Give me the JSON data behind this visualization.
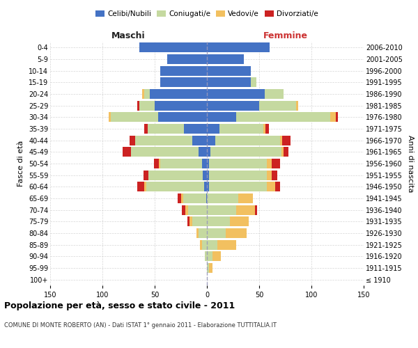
{
  "age_groups": [
    "100+",
    "95-99",
    "90-94",
    "85-89",
    "80-84",
    "75-79",
    "70-74",
    "65-69",
    "60-64",
    "55-59",
    "50-54",
    "45-49",
    "40-44",
    "35-39",
    "30-34",
    "25-29",
    "20-24",
    "15-19",
    "10-14",
    "5-9",
    "0-4"
  ],
  "birth_years": [
    "≤ 1910",
    "1911-1915",
    "1916-1920",
    "1921-1925",
    "1926-1930",
    "1931-1935",
    "1936-1940",
    "1941-1945",
    "1946-1950",
    "1951-1955",
    "1956-1960",
    "1961-1965",
    "1966-1970",
    "1971-1975",
    "1976-1980",
    "1981-1985",
    "1986-1990",
    "1991-1995",
    "1996-2000",
    "2001-2005",
    "2006-2010"
  ],
  "male_celibi": [
    0,
    0,
    0,
    0,
    0,
    0,
    0,
    1,
    3,
    4,
    5,
    8,
    14,
    22,
    47,
    50,
    55,
    45,
    45,
    38,
    65
  ],
  "male_coniugati": [
    0,
    0,
    2,
    5,
    8,
    14,
    18,
    22,
    55,
    52,
    40,
    65,
    55,
    35,
    45,
    15,
    5,
    0,
    0,
    0,
    0
  ],
  "male_vedovi": [
    0,
    0,
    0,
    2,
    2,
    3,
    3,
    2,
    2,
    0,
    1,
    0,
    0,
    0,
    2,
    0,
    2,
    0,
    0,
    0,
    0
  ],
  "male_divorziati": [
    0,
    0,
    0,
    0,
    0,
    2,
    3,
    3,
    7,
    5,
    5,
    8,
    5,
    3,
    0,
    2,
    0,
    0,
    0,
    0,
    0
  ],
  "female_nubili": [
    0,
    0,
    0,
    0,
    0,
    0,
    0,
    0,
    2,
    2,
    2,
    3,
    8,
    12,
    28,
    50,
    55,
    42,
    42,
    35,
    60
  ],
  "female_coniugate": [
    0,
    2,
    5,
    10,
    18,
    22,
    28,
    30,
    55,
    55,
    55,
    68,
    62,
    42,
    90,
    35,
    18,
    5,
    0,
    0,
    0
  ],
  "female_vedove": [
    0,
    3,
    8,
    18,
    20,
    18,
    18,
    14,
    8,
    5,
    5,
    2,
    2,
    2,
    5,
    2,
    0,
    0,
    0,
    0,
    0
  ],
  "female_divorziate": [
    0,
    0,
    0,
    0,
    0,
    0,
    2,
    0,
    5,
    5,
    8,
    5,
    8,
    3,
    2,
    0,
    0,
    0,
    0,
    0,
    0
  ],
  "color_celibi": "#4472C4",
  "color_coniugati": "#c5d9a0",
  "color_vedovi": "#f2c060",
  "color_divorziati": "#cc2222",
  "title": "Popolazione per età, sesso e stato civile - 2011",
  "subtitle": "COMUNE DI MONTE ROBERTO (AN) - Dati ISTAT 1° gennaio 2011 - Elaborazione TUTTITALIA.IT",
  "xlim": 150,
  "ylabel_left": "Fasce di età",
  "ylabel_right": "Anni di nascita",
  "label_male": "Maschi",
  "label_female": "Femmine",
  "legend_labels": [
    "Celibi/Nubili",
    "Coniugati/e",
    "Vedovi/e",
    "Divorziati/e"
  ],
  "bg_color": "#ffffff",
  "grid_color": "#cccccc"
}
